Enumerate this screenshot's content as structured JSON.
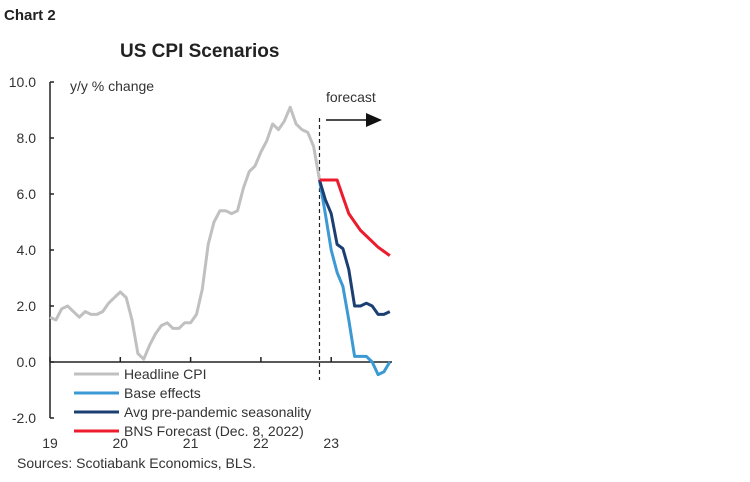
{
  "chart_label": "Chart 2",
  "source": "Sources: Scotiabank Economics, BLS.",
  "chart_data": {
    "type": "line",
    "title": "US CPI Scenarios",
    "ylabel": "y/y % change",
    "ylim": [
      -2.0,
      10.0
    ],
    "yticks": [
      "10.0",
      "8.0",
      "6.0",
      "4.0",
      "2.0",
      "0.0",
      "-2.0"
    ],
    "xticks": [
      "19",
      "20",
      "21",
      "22",
      "23"
    ],
    "annotation": "forecast",
    "forecast_start": "2022-11",
    "legend_position": "bottom-left",
    "series": [
      {
        "name": "Headline CPI",
        "color": "#c0c0c0",
        "start": "2019-01",
        "values": [
          1.6,
          1.5,
          1.9,
          2.0,
          1.8,
          1.6,
          1.8,
          1.7,
          1.7,
          1.8,
          2.1,
          2.3,
          2.5,
          2.3,
          1.5,
          0.3,
          0.1,
          0.6,
          1.0,
          1.3,
          1.4,
          1.2,
          1.2,
          1.4,
          1.4,
          1.7,
          2.6,
          4.2,
          5.0,
          5.4,
          5.4,
          5.3,
          5.4,
          6.2,
          6.8,
          7.0,
          7.5,
          7.9,
          8.5,
          8.3,
          8.6,
          9.1,
          8.5,
          8.3,
          8.2,
          7.7,
          6.5
        ]
      },
      {
        "name": "Base effects",
        "color": "#3b99d4",
        "start": "2022-11",
        "values": [
          6.5,
          5.3,
          4.0,
          3.2,
          2.7,
          1.5,
          0.2,
          0.2,
          0.2,
          0.0,
          -0.45,
          -0.35,
          0.0
        ]
      },
      {
        "name": "Avg pre-pandemic seasonality",
        "color": "#1c3f73",
        "start": "2022-11",
        "values": [
          6.5,
          5.8,
          5.3,
          4.2,
          4.05,
          3.3,
          2.0,
          2.0,
          2.1,
          2.0,
          1.7,
          1.7,
          1.8
        ]
      },
      {
        "name": "BNS Forecast (Dec. 8, 2022)",
        "color": "#ec1c2e",
        "start": "2022-11",
        "values": [
          6.5,
          6.5,
          6.5,
          6.5,
          5.9,
          5.3,
          5.0,
          4.7,
          4.5,
          4.3,
          4.1,
          3.95,
          3.8
        ]
      }
    ]
  }
}
